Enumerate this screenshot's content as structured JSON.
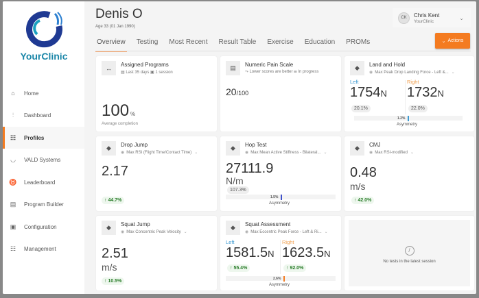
{
  "sidebar": {
    "brand": "YourClinic",
    "items": [
      {
        "label": "Home",
        "icon": "home-icon",
        "glyph": "⌂"
      },
      {
        "label": "Dashboard",
        "icon": "dashboard-icon",
        "glyph": "⫶"
      },
      {
        "label": "Profiles",
        "icon": "profiles-icon",
        "glyph": "☷",
        "active": true
      },
      {
        "label": "VALD Systems",
        "icon": "vald-icon",
        "glyph": "◡"
      },
      {
        "label": "Leaderboard",
        "icon": "leaderboard-icon",
        "glyph": "♉"
      },
      {
        "label": "Program Builder",
        "icon": "program-builder-icon",
        "glyph": "▤"
      },
      {
        "label": "Configuration",
        "icon": "configuration-icon",
        "glyph": "▣"
      },
      {
        "label": "Management",
        "icon": "management-icon",
        "glyph": "☷"
      }
    ]
  },
  "header": {
    "name": "Denis O",
    "age": "Age  33 (01 Jan 1990)",
    "tabs": [
      "Overview",
      "Testing",
      "Most Recent",
      "Result Table",
      "Exercise",
      "Education",
      "PROMs"
    ],
    "active_tab": "Overview",
    "user": {
      "initials": "CK",
      "name": "Chris Kent",
      "org": "YourClinic"
    },
    "actions_label": "Actions"
  },
  "colors": {
    "accent": "#f47b20",
    "green": "#3cc23c",
    "bar": "#3f51c9",
    "left": "#3d9ad1",
    "right": "#f0a050"
  },
  "cards": {
    "assigned": {
      "title": "Assigned Programs",
      "period": "Last 35 days",
      "sessions": "1 session",
      "value": "100",
      "unit": "%",
      "caption": "Average completion",
      "completion_percent": 100
    },
    "pain": {
      "title": "Numeric Pain Scale",
      "note1": "Lower scores are better",
      "note2": "In progress",
      "value": "20",
      "max": "/100"
    },
    "land": {
      "title": "Land and Hold",
      "metric": "Max Peak Drop Landing Force - Left &...",
      "left_label": "Left",
      "right_label": "Right",
      "left": "1754",
      "right": "1732",
      "unit": "N",
      "left_change": "20.1%",
      "right_change": "22.0%",
      "asym": "1.2%",
      "asym_label": "Asymmetry"
    },
    "drop": {
      "title": "Drop Jump",
      "metric": "Max RSI (Flight Time/Contact Time)",
      "value": "2.17",
      "unit": "",
      "change": "↑ 44.7%"
    },
    "hop": {
      "title": "Hop Test",
      "metric": "Max Mean Active Stiffness - Bilateral...",
      "value": "27111.9",
      "unit": "N/m",
      "change": "107.3%",
      "asym": "1.5%",
      "asym_label": "Asymmetry"
    },
    "cmj": {
      "title": "CMJ",
      "metric": "Max RSI-modified",
      "value": "0.48",
      "unit": "m/s",
      "change": "↑ 42.0%"
    },
    "squatjump": {
      "title": "Squat Jump",
      "metric": "Max Concentric Peak Velocity",
      "value": "2.51",
      "unit": "m/s",
      "change": "↑ 10.5%"
    },
    "squatassess": {
      "title": "Squat Assessment",
      "metric": "Max Eccentric Peak Force - Left & Ri...",
      "left_label": "Left",
      "right_label": "Right",
      "left": "1581.5",
      "right": "1623.5",
      "unit": "N",
      "left_change": "↑ 55.4%",
      "right_change": "↑ 92.0%",
      "asym": "2.6%",
      "asym_label": "Asymmetry"
    },
    "empty": {
      "message": "No tests in the latest session"
    }
  }
}
